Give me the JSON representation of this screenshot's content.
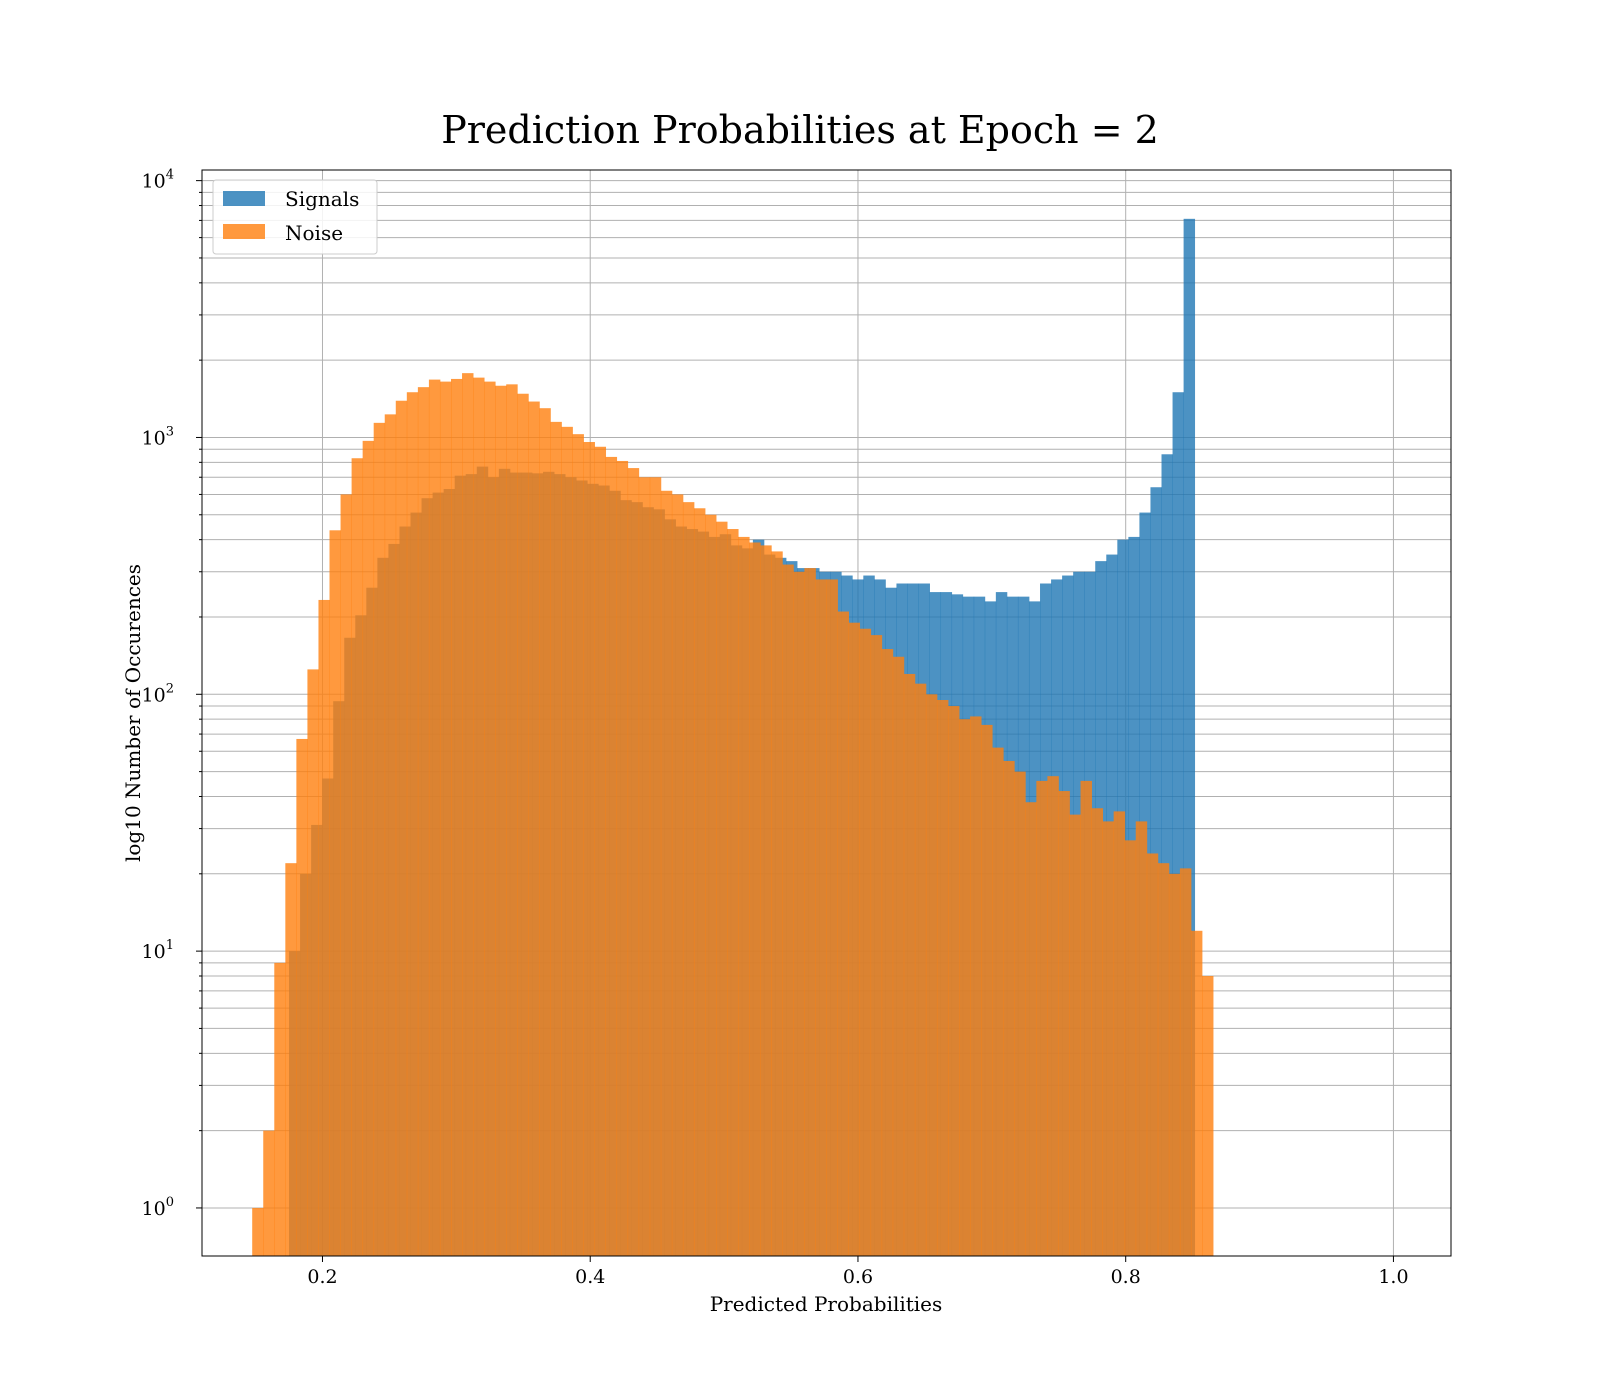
{
  "chart_data": {
    "type": "bar",
    "subtype": "histogram",
    "title": "Prediction Probabilities at Epoch = 2",
    "xlabel": "Predicted Probabilities",
    "ylabel": "log10 Number of Occurences",
    "yscale": "log",
    "xlim": [
      0.11,
      1.043
    ],
    "ylim": [
      0.65,
      11000
    ],
    "x_ticks": [
      0.2,
      0.4,
      0.6,
      0.8,
      1.0
    ],
    "x_tick_labels": [
      "0.2",
      "0.4",
      "0.6",
      "0.8",
      "1.0"
    ],
    "y_ticks": [
      {
        "base": "10",
        "exp": "0",
        "value": 1
      },
      {
        "base": "10",
        "exp": "1",
        "value": 10
      },
      {
        "base": "10",
        "exp": "2",
        "value": 100
      },
      {
        "base": "10",
        "exp": "3",
        "value": 1000
      },
      {
        "base": "10",
        "exp": "4",
        "value": 10000
      }
    ],
    "grid": true,
    "legend_position": "top-left",
    "series": [
      {
        "name": "Signals",
        "color": "#1f77b4",
        "bin_start": 0.175,
        "bin_width": 0.00825,
        "values": [
          10,
          20,
          31,
          47,
          94,
          166,
          203,
          260,
          340,
          385,
          450,
          510,
          580,
          610,
          630,
          710,
          720,
          770,
          700,
          755,
          730,
          730,
          725,
          735,
          720,
          700,
          680,
          660,
          650,
          620,
          570,
          560,
          535,
          525,
          480,
          450,
          440,
          430,
          410,
          420,
          380,
          370,
          400,
          350,
          340,
          330,
          310,
          310,
          300,
          300,
          290,
          280,
          290,
          280,
          260,
          270,
          270,
          270,
          250,
          250,
          245,
          240,
          240,
          230,
          250,
          240,
          240,
          230,
          270,
          280,
          290,
          300,
          300,
          330,
          350,
          400,
          410,
          510,
          640,
          860,
          1500,
          7100
        ]
      },
      {
        "name": "Noise",
        "color": "#ff7f0e",
        "bin_start": 0.1475,
        "bin_width": 0.00825,
        "values": [
          1,
          2,
          9,
          22,
          67,
          125,
          233,
          435,
          600,
          830,
          970,
          1140,
          1230,
          1390,
          1500,
          1570,
          1680,
          1650,
          1690,
          1780,
          1710,
          1650,
          1590,
          1610,
          1480,
          1380,
          1300,
          1150,
          1100,
          1030,
          960,
          920,
          840,
          810,
          760,
          700,
          700,
          620,
          600,
          560,
          530,
          500,
          470,
          440,
          410,
          390,
          380,
          360,
          320,
          300,
          310,
          280,
          280,
          210,
          190,
          180,
          170,
          150,
          140,
          120,
          110,
          100,
          95,
          90,
          80,
          82,
          76,
          62,
          55,
          50,
          38,
          46,
          48,
          42,
          34,
          46,
          36,
          32,
          35,
          27,
          32,
          24,
          22,
          20,
          21,
          12,
          8
        ]
      }
    ]
  }
}
